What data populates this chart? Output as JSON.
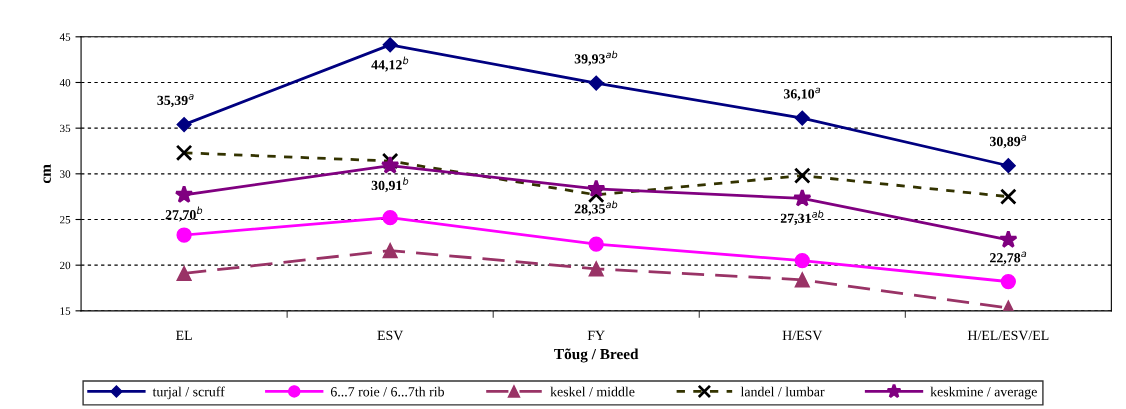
{
  "chart_data": {
    "type": "line",
    "xlabel": "Tõug / Breed",
    "ylabel": "cm",
    "categories": [
      "EL",
      "ESV",
      "FY",
      "H/ESV",
      "H/EL/ESV/EL"
    ],
    "ylim": [
      15,
      45
    ],
    "yticks": [
      15,
      20,
      25,
      30,
      35,
      40,
      45
    ],
    "grid": "y",
    "legend": "bottom",
    "series": [
      {
        "name": "turjal / scruff",
        "color": "#000080",
        "marker": "diamond",
        "line_style": "solid",
        "values": [
          35.39,
          44.12,
          39.93,
          36.1,
          30.89
        ],
        "value_labels": [
          "35,39$^{a}$",
          "44,12$^{b}$",
          "39,93$^{ab}$",
          "36,10$^{a}$",
          "30,89$^{a}$"
        ]
      },
      {
        "name": "6...7 roie / 6...7th rib",
        "color": "#ff00ff",
        "marker": "circle",
        "line_style": "solid",
        "values": [
          23.3,
          25.2,
          22.3,
          20.5,
          18.2
        ]
      },
      {
        "name": "keskel / middle",
        "color": "#993366",
        "marker": "triangle",
        "line_style": "dashed",
        "values": [
          19.1,
          21.6,
          19.6,
          18.4,
          15.3
        ]
      },
      {
        "name": "landel / lumbar",
        "color": "#333300",
        "marker": "cross",
        "line_style": "dotted",
        "values": [
          32.3,
          31.4,
          27.7,
          29.8,
          27.5
        ]
      },
      {
        "name": "keskmine / average",
        "color": "#800080",
        "marker": "star",
        "line_style": "solid",
        "values": [
          27.7,
          30.91,
          28.35,
          27.31,
          22.78
        ],
        "value_labels": [
          "27,70$^{b}$",
          "30,91$^{b}$",
          "28,35$^{ab}$",
          "27,31$^{ab}$",
          "22,78$^{a}$"
        ]
      }
    ]
  }
}
